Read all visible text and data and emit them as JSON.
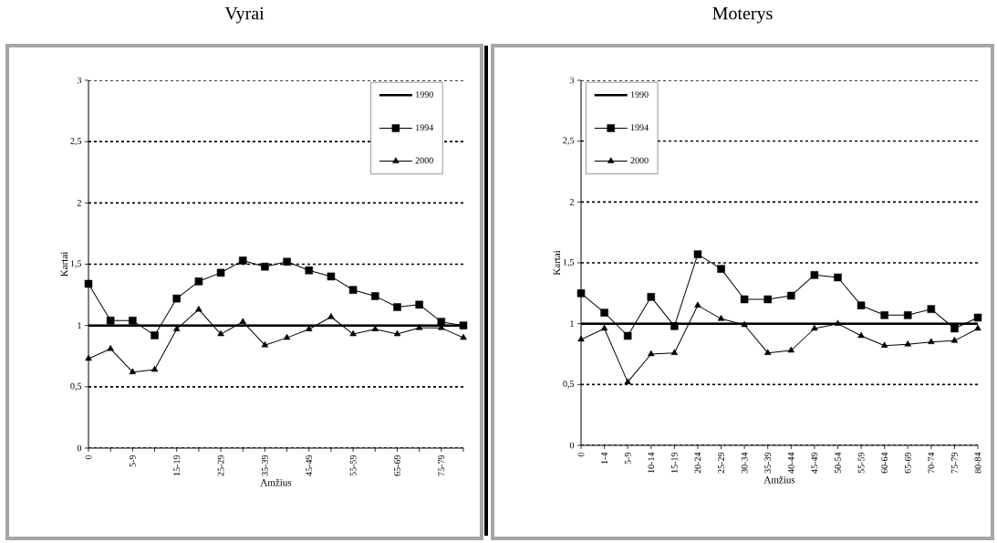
{
  "chart_data": [
    {
      "type": "line",
      "title": "Vyrai",
      "xlabel": "Amžius",
      "ylabel": "Kartai",
      "categories": [
        "0",
        null,
        "5-9",
        null,
        "15-19",
        null,
        "25-29",
        null,
        "35-39",
        null,
        "45-49",
        null,
        "55-59",
        null,
        "65-69",
        null,
        "75-79",
        null
      ],
      "series": [
        {
          "name": "1990",
          "color": "#000000",
          "marker": "none",
          "values": [
            1,
            1,
            1,
            1,
            1,
            1,
            1,
            1,
            1,
            1,
            1,
            1,
            1,
            1,
            1,
            1,
            1,
            1
          ]
        },
        {
          "name": "1994",
          "color": "#000000",
          "marker": "square",
          "values": [
            1.34,
            1.04,
            1.04,
            0.92,
            1.22,
            1.36,
            1.43,
            1.53,
            1.48,
            1.52,
            1.45,
            1.4,
            1.29,
            1.24,
            1.15,
            1.17,
            1.03,
            1.0
          ]
        },
        {
          "name": "2000",
          "color": "#000000",
          "marker": "triangle",
          "values": [
            0.73,
            0.81,
            0.62,
            0.64,
            0.97,
            1.13,
            0.93,
            1.03,
            0.84,
            0.9,
            0.97,
            1.07,
            0.93,
            0.97,
            0.93,
            0.98,
            0.98,
            0.9
          ]
        }
      ],
      "ylim": [
        0,
        3
      ],
      "yticks": [
        0,
        {
          "value": 0.5,
          "label": "0,5"
        },
        1,
        {
          "value": 1.5,
          "label": "1,5"
        },
        2,
        {
          "value": 2.5,
          "label": "2,5"
        },
        3
      ],
      "grid": "y",
      "legend": "top right"
    },
    {
      "type": "line",
      "title": "Moterys",
      "xlabel": "Amžius",
      "ylabel": "Kartai",
      "categories": [
        "0",
        "1-4",
        "5-9",
        "10-14",
        "15-19",
        "20-24",
        "25-29",
        "30-34",
        "35-39",
        "40-44",
        "45-49",
        "50-54",
        "55-59",
        "60-64",
        "65-69",
        "70-74",
        "75-79",
        "80-84"
      ],
      "series": [
        {
          "name": "1990",
          "color": "#000000",
          "marker": "none",
          "values": [
            1,
            1,
            1,
            1,
            1,
            1,
            1,
            1,
            1,
            1,
            1,
            1,
            1,
            1,
            1,
            1,
            1,
            1
          ]
        },
        {
          "name": "1994",
          "color": "#000000",
          "marker": "square",
          "values": [
            1.25,
            1.09,
            0.9,
            1.22,
            0.98,
            1.57,
            1.45,
            1.2,
            1.2,
            1.23,
            1.4,
            1.38,
            1.15,
            1.07,
            1.07,
            1.12,
            0.96,
            1.05
          ]
        },
        {
          "name": "2000",
          "color": "#000000",
          "marker": "triangle",
          "values": [
            0.87,
            0.96,
            0.52,
            0.75,
            0.76,
            1.15,
            1.04,
            0.99,
            0.76,
            0.78,
            0.96,
            1.0,
            0.9,
            0.82,
            0.83,
            0.85,
            0.86,
            0.96
          ]
        }
      ],
      "ylim": [
        0,
        3
      ],
      "yticks": [
        0,
        {
          "value": 0.5,
          "label": "0,5"
        },
        1,
        {
          "value": 1.5,
          "label": "1,5"
        },
        2,
        {
          "value": 2.5,
          "label": "2,5"
        },
        3
      ],
      "grid": "y",
      "legend": "top left"
    }
  ]
}
